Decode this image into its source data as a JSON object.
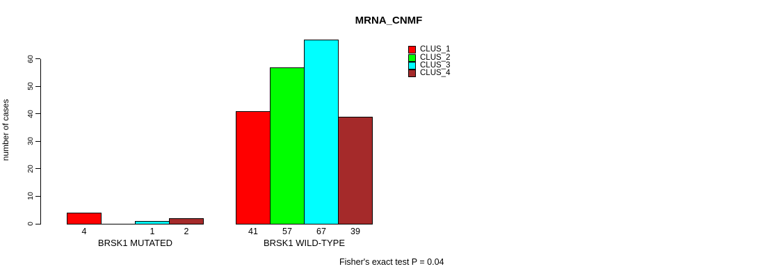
{
  "chart_data": {
    "type": "bar",
    "title": "MRNA_CNMF",
    "ylabel": "number of cases",
    "xlabel": "",
    "yticks": [
      0,
      10,
      20,
      30,
      40,
      50,
      60
    ],
    "ylim": [
      0,
      67
    ],
    "grid": false,
    "legend_position": "top-right",
    "categories": [
      "BRSK1 MUTATED",
      "BRSK1 WILD-TYPE"
    ],
    "series": [
      {
        "name": "CLUS_1",
        "color": "#FF0000",
        "values": [
          4,
          41
        ]
      },
      {
        "name": "CLUS_2",
        "color": "#00FF00",
        "values": [
          0,
          57
        ]
      },
      {
        "name": "CLUS_3",
        "color": "#00FFFF",
        "values": [
          1,
          67
        ]
      },
      {
        "name": "CLUS_4",
        "color": "#A52A2A",
        "values": [
          2,
          39
        ]
      }
    ],
    "bar_labels": [
      [
        "4",
        "",
        "1",
        "2"
      ],
      [
        "41",
        "57",
        "67",
        "39"
      ]
    ],
    "annotation": "Fisher's exact test P = 0.04",
    "colors": {
      "background": "#FFFFFF",
      "bar_border": "#000000",
      "text": "#000000"
    }
  }
}
